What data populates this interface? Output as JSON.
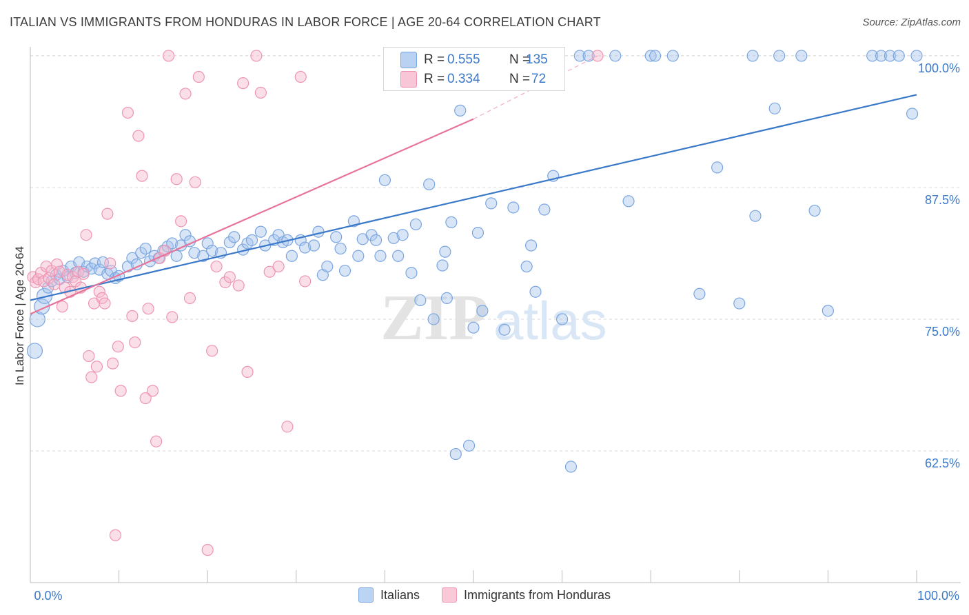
{
  "title": "ITALIAN VS IMMIGRANTS FROM HONDURAS IN LABOR FORCE | AGE 20-64 CORRELATION CHART",
  "source": "Source: ZipAtlas.com",
  "watermark": {
    "zip": "ZIP",
    "atlas": "atlas"
  },
  "legend": {
    "r_label": "R =",
    "n_label": "N =",
    "series": [
      {
        "r": "0.555",
        "n": "135",
        "color": "#a8c6ee",
        "edge": "#6f9fdc"
      },
      {
        "r": "0.334",
        "n": "72",
        "color": "#f6b7cb",
        "edge": "#e88aa8"
      }
    ]
  },
  "bottom_legend": [
    {
      "label": "Italians",
      "color": "#bcd4f3",
      "edge": "#7fa8e0"
    },
    {
      "label": "Immigrants from Honduras",
      "color": "#f9c9d8",
      "edge": "#ec9bb5"
    }
  ],
  "colors": {
    "blue": "#3a78c9",
    "blue_fill": "rgba(168,198,238,0.45)",
    "blue_edge": "#7aa5df",
    "pink": "#e8739a",
    "pink_fill": "rgba(246,183,203,0.45)",
    "pink_edge": "#ee94b2",
    "axis_text": "#3a78c9",
    "grid": "#d9d9d9"
  },
  "chart_data": {
    "type": "scatter",
    "title": "ITALIAN VS IMMIGRANTS FROM HONDURAS IN LABOR FORCE | AGE 20-64 CORRELATION CHART",
    "xlabel": "",
    "ylabel": "In Labor Force | Age 20-64",
    "xlim": [
      0,
      100
    ],
    "ylim": [
      50,
      101.5
    ],
    "x_tick_labels": [
      "0.0%",
      "100.0%"
    ],
    "y_ticks": [
      62.5,
      75.0,
      87.5,
      100.0
    ],
    "y_tick_labels": [
      "62.5%",
      "75.0%",
      "87.5%",
      "100.0%"
    ],
    "grid": true,
    "legend_position": "top-center",
    "series": [
      {
        "name": "Italians",
        "trend": {
          "x": [
            0,
            100
          ],
          "y": [
            76.8,
            96.3
          ],
          "style": "solid"
        },
        "points": [
          [
            0.5,
            72.0
          ],
          [
            0.8,
            75.0
          ],
          [
            1.3,
            76.2
          ],
          [
            1.6,
            77.2
          ],
          [
            2.0,
            78.0
          ],
          [
            2.4,
            78.6
          ],
          [
            2.9,
            79.2
          ],
          [
            3.3,
            78.8
          ],
          [
            3.7,
            79.6
          ],
          [
            4.2,
            79.0
          ],
          [
            4.6,
            80.0
          ],
          [
            5.1,
            79.4
          ],
          [
            5.5,
            80.4
          ],
          [
            6.0,
            79.5
          ],
          [
            6.4,
            80.0
          ],
          [
            6.9,
            79.8
          ],
          [
            7.3,
            80.3
          ],
          [
            7.8,
            79.7
          ],
          [
            8.2,
            80.4
          ],
          [
            8.7,
            79.3
          ],
          [
            9.1,
            79.6
          ],
          [
            9.6,
            78.9
          ],
          [
            10.0,
            79.1
          ],
          [
            11.0,
            80.0
          ],
          [
            11.5,
            80.8
          ],
          [
            12.0,
            80.2
          ],
          [
            12.5,
            81.3
          ],
          [
            13.0,
            81.7
          ],
          [
            13.5,
            80.5
          ],
          [
            14.0,
            81.0
          ],
          [
            14.5,
            80.8
          ],
          [
            15.0,
            81.5
          ],
          [
            15.5,
            81.9
          ],
          [
            16.0,
            82.2
          ],
          [
            16.5,
            81.0
          ],
          [
            17.0,
            82.0
          ],
          [
            17.5,
            83.0
          ],
          [
            18.0,
            82.4
          ],
          [
            18.5,
            81.3
          ],
          [
            19.5,
            81.0
          ],
          [
            20.0,
            82.2
          ],
          [
            20.5,
            81.5
          ],
          [
            21.5,
            81.3
          ],
          [
            22.5,
            82.3
          ],
          [
            23.0,
            82.8
          ],
          [
            24.0,
            81.6
          ],
          [
            24.5,
            82.2
          ],
          [
            25.0,
            82.5
          ],
          [
            26.0,
            83.3
          ],
          [
            26.5,
            82.0
          ],
          [
            27.5,
            82.5
          ],
          [
            28.0,
            83.0
          ],
          [
            28.5,
            82.3
          ],
          [
            29.0,
            82.5
          ],
          [
            29.5,
            81.0
          ],
          [
            30.5,
            82.5
          ],
          [
            31.0,
            81.8
          ],
          [
            32.0,
            82.0
          ],
          [
            32.5,
            83.3
          ],
          [
            33.0,
            79.2
          ],
          [
            33.5,
            80.0
          ],
          [
            34.5,
            82.8
          ],
          [
            35.0,
            81.7
          ],
          [
            35.5,
            79.6
          ],
          [
            36.5,
            84.3
          ],
          [
            37.0,
            81.0
          ],
          [
            37.5,
            82.6
          ],
          [
            38.5,
            83.0
          ],
          [
            39.0,
            82.5
          ],
          [
            39.5,
            81.0
          ],
          [
            40.0,
            88.2
          ],
          [
            41.0,
            82.7
          ],
          [
            41.5,
            81.0
          ],
          [
            42.0,
            83.0
          ],
          [
            43.0,
            79.4
          ],
          [
            43.5,
            84.0
          ],
          [
            44.0,
            76.8
          ],
          [
            45.0,
            87.8
          ],
          [
            45.5,
            75.0
          ],
          [
            46.5,
            80.1
          ],
          [
            46.8,
            81.4
          ],
          [
            47.0,
            77.0
          ],
          [
            47.5,
            84.2
          ],
          [
            48.0,
            62.2
          ],
          [
            48.5,
            94.8
          ],
          [
            49.5,
            63.0
          ],
          [
            50.0,
            74.2
          ],
          [
            50.5,
            83.2
          ],
          [
            51.0,
            75.8
          ],
          [
            52.0,
            86.0
          ],
          [
            52.5,
            100
          ],
          [
            53.5,
            74.0
          ],
          [
            54.5,
            85.6
          ],
          [
            55.0,
            100
          ],
          [
            56.0,
            80.0
          ],
          [
            56.5,
            82.0
          ],
          [
            57.0,
            77.6
          ],
          [
            58.0,
            85.4
          ],
          [
            58.5,
            100
          ],
          [
            59.0,
            88.6
          ],
          [
            60.0,
            75.0
          ],
          [
            61.0,
            61.0
          ],
          [
            62.0,
            100
          ],
          [
            63.0,
            100
          ],
          [
            66.0,
            100
          ],
          [
            67.5,
            86.2
          ],
          [
            70.0,
            100
          ],
          [
            70.5,
            100
          ],
          [
            72.5,
            100
          ],
          [
            75.5,
            77.4
          ],
          [
            77.5,
            89.4
          ],
          [
            80.0,
            76.5
          ],
          [
            81.5,
            100
          ],
          [
            81.8,
            84.8
          ],
          [
            84.0,
            95.0
          ],
          [
            84.5,
            100
          ],
          [
            87.0,
            100
          ],
          [
            88.5,
            85.3
          ],
          [
            90.0,
            75.8
          ],
          [
            95.0,
            100
          ],
          [
            96.0,
            100
          ],
          [
            97.0,
            100
          ],
          [
            98.0,
            100
          ],
          [
            99.5,
            94.5
          ],
          [
            100.0,
            100
          ]
        ]
      },
      {
        "name": "Immigrants from Honduras",
        "trend": {
          "x": [
            0,
            50
          ],
          "y": [
            75.5,
            94.0
          ],
          "style": "solid",
          "dashed_to": [
            64,
            100
          ]
        },
        "points": [
          [
            0.3,
            79.0
          ],
          [
            0.6,
            78.5
          ],
          [
            0.9,
            78.8
          ],
          [
            1.2,
            79.4
          ],
          [
            1.5,
            78.6
          ],
          [
            1.8,
            80.0
          ],
          [
            2.1,
            78.9
          ],
          [
            2.4,
            79.6
          ],
          [
            2.7,
            78.3
          ],
          [
            3.0,
            80.2
          ],
          [
            3.3,
            79.5
          ],
          [
            3.6,
            76.2
          ],
          [
            3.9,
            78.0
          ],
          [
            4.2,
            79.2
          ],
          [
            4.5,
            77.6
          ],
          [
            4.8,
            79.0
          ],
          [
            5.1,
            78.6
          ],
          [
            5.4,
            79.5
          ],
          [
            5.7,
            78.0
          ],
          [
            6.0,
            79.3
          ],
          [
            6.3,
            83.0
          ],
          [
            6.6,
            71.5
          ],
          [
            6.9,
            69.5
          ],
          [
            7.2,
            76.5
          ],
          [
            7.5,
            70.5
          ],
          [
            7.8,
            77.6
          ],
          [
            8.1,
            77.0
          ],
          [
            8.4,
            76.5
          ],
          [
            8.7,
            85.0
          ],
          [
            9.0,
            80.3
          ],
          [
            9.3,
            70.8
          ],
          [
            9.6,
            54.5
          ],
          [
            9.9,
            72.4
          ],
          [
            10.2,
            68.2
          ],
          [
            11.0,
            94.6
          ],
          [
            11.5,
            75.3
          ],
          [
            11.8,
            72.8
          ],
          [
            12.2,
            92.4
          ],
          [
            12.6,
            88.6
          ],
          [
            13.0,
            67.5
          ],
          [
            13.3,
            76.0
          ],
          [
            13.8,
            68.2
          ],
          [
            14.2,
            63.4
          ],
          [
            14.6,
            80.8
          ],
          [
            15.2,
            81.5
          ],
          [
            15.6,
            100
          ],
          [
            16.0,
            75.2
          ],
          [
            16.5,
            88.3
          ],
          [
            17.0,
            84.3
          ],
          [
            17.5,
            96.4
          ],
          [
            18.0,
            77.0
          ],
          [
            18.6,
            88.0
          ],
          [
            19.0,
            98.0
          ],
          [
            20.0,
            53.1
          ],
          [
            20.5,
            72.0
          ],
          [
            21.0,
            80.0
          ],
          [
            22.0,
            78.5
          ],
          [
            22.5,
            79.0
          ],
          [
            23.5,
            78.2
          ],
          [
            24.0,
            97.4
          ],
          [
            24.5,
            70.0
          ],
          [
            25.5,
            100
          ],
          [
            26.0,
            96.5
          ],
          [
            27.0,
            79.5
          ],
          [
            28.0,
            80.0
          ],
          [
            29.0,
            64.8
          ],
          [
            30.5,
            98.0
          ],
          [
            31.0,
            78.6
          ],
          [
            42.5,
            99.0
          ],
          [
            44.0,
            100
          ],
          [
            47.0,
            100
          ],
          [
            64.0,
            100
          ]
        ]
      }
    ]
  }
}
